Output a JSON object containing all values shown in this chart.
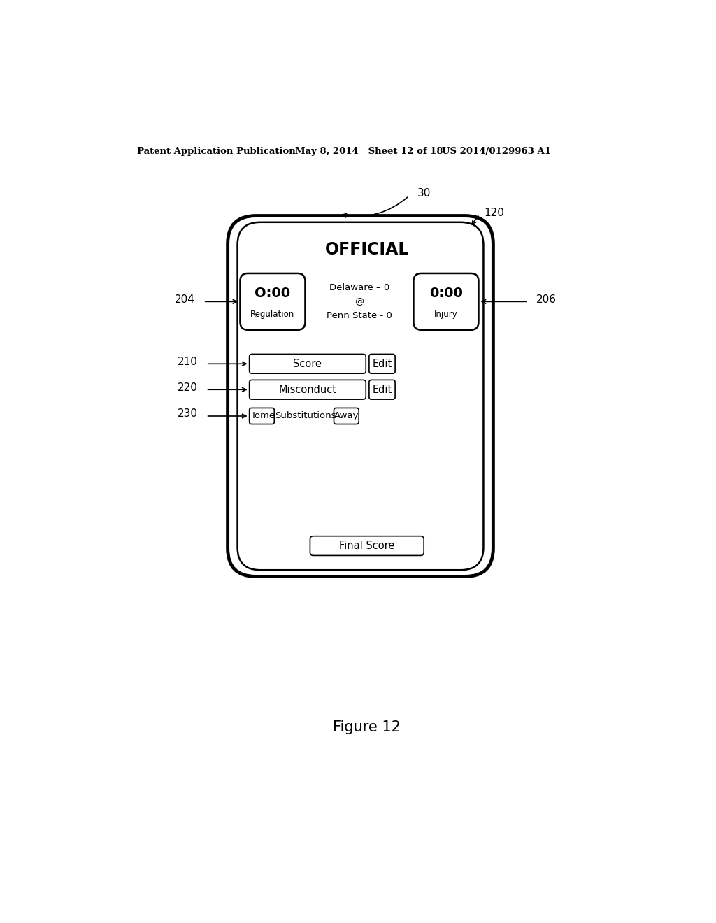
{
  "bg_color": "#ffffff",
  "header_text1": "Patent Application Publication",
  "header_text2": "May 8, 2014   Sheet 12 of 18",
  "header_text3": "US 2014/0129963 A1",
  "figure_label": "Figure 12",
  "screen_title": "OFFICIAL",
  "left_timer_label": "O:00",
  "left_timer_sub": "Regulation",
  "center_text": "Delaware – 0\n@\nPenn State - 0",
  "right_timer_label": "0:00",
  "right_timer_sub": "Injury",
  "score_btn": "Score",
  "misconduct_btn": "Misconduct",
  "edit_btn1": "Edit",
  "edit_btn2": "Edit",
  "home_btn": "Home",
  "substitutions_text": "Substitutions",
  "away_btn": "Away",
  "final_score_btn": "Final Score",
  "ref_204": "204",
  "ref_206": "206",
  "ref_210": "210",
  "ref_220": "220",
  "ref_230": "230",
  "ref_30": "30",
  "ref_120": "120"
}
